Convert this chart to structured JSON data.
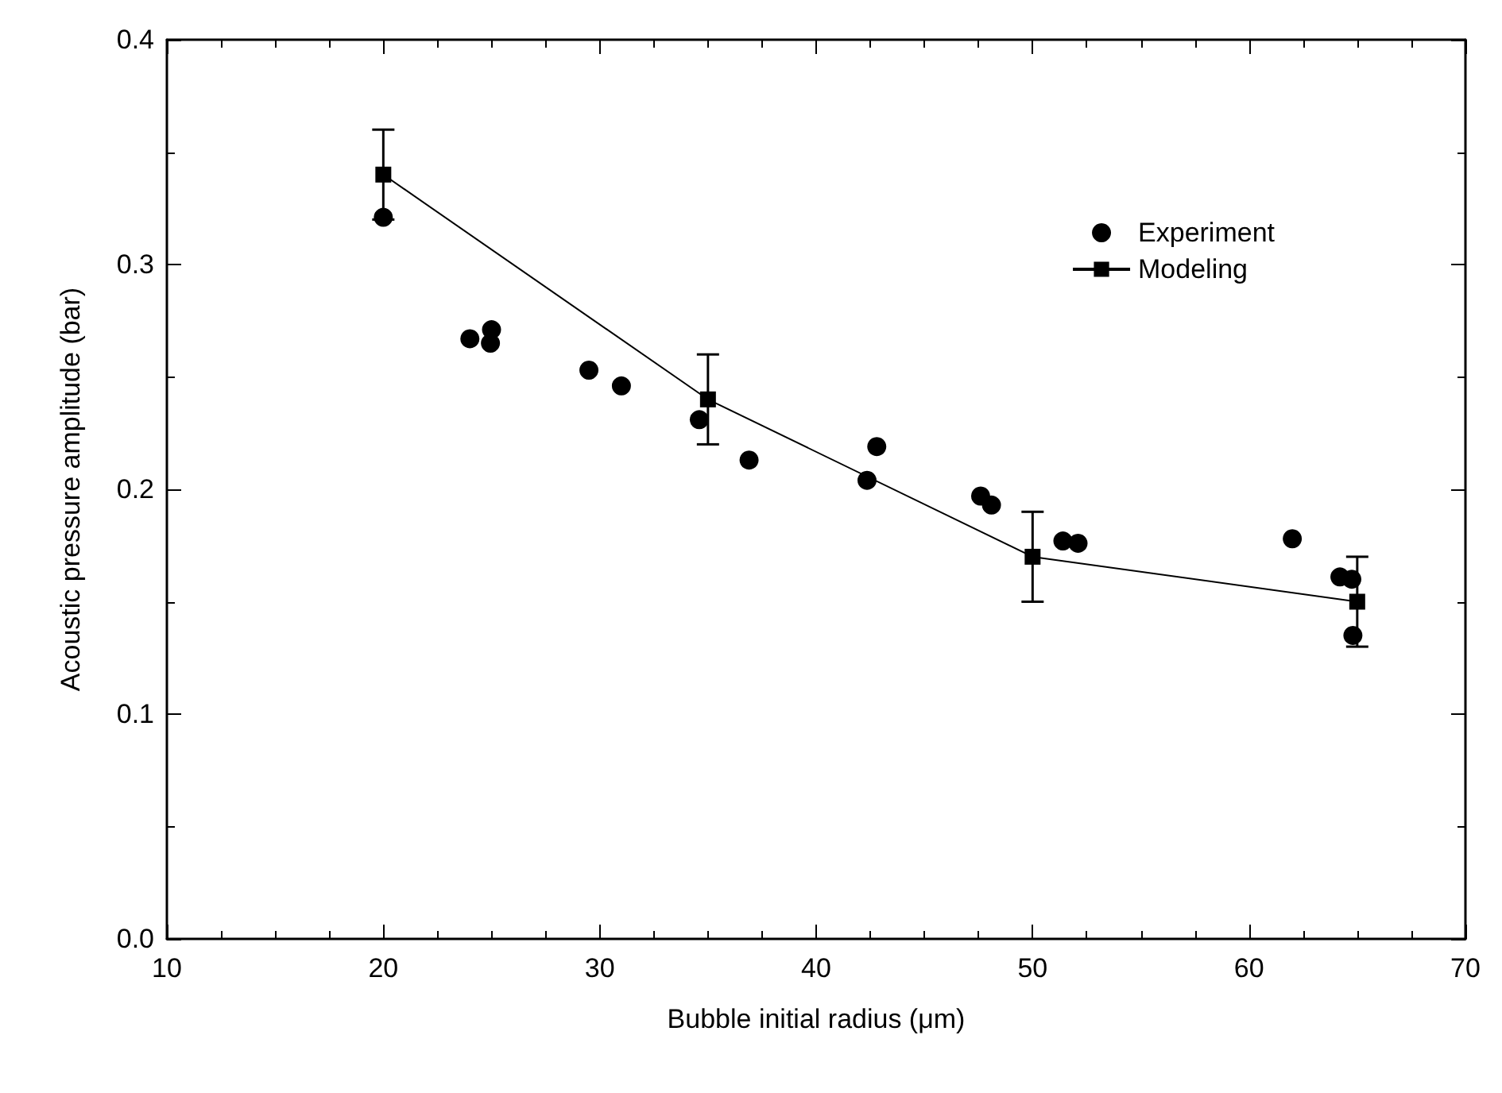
{
  "chart_data": {
    "type": "scatter",
    "xlabel": "Bubble initial radius (μm)",
    "ylabel": "Acoustic pressure amplitude (bar)",
    "xlim": [
      10,
      70
    ],
    "xticks": [
      10,
      20,
      30,
      40,
      50,
      60,
      70
    ],
    "ylim": [
      0,
      0.4
    ],
    "yticks": [
      {
        "value": 0,
        "label": "0.0"
      },
      0.1,
      0.2,
      0.3,
      0.4
    ],
    "legend": "top right",
    "grid": false,
    "series": [
      {
        "name": "Experiment",
        "marker": "circle",
        "color": "#000000",
        "x": [
          20,
          24.0,
          25.0,
          24.95,
          29.5,
          31.0,
          34.6,
          36.9,
          42.8,
          42.35,
          47.6,
          48.1,
          51.4,
          52.1,
          62.0,
          64.2,
          64.75,
          64.8
        ],
        "values": [
          0.321,
          0.267,
          0.271,
          0.265,
          0.253,
          0.246,
          0.231,
          0.213,
          0.219,
          0.204,
          0.197,
          0.193,
          0.177,
          0.176,
          0.178,
          0.161,
          0.16,
          0.135
        ]
      },
      {
        "name": "Modeling",
        "type": "line",
        "marker": "square",
        "line_style": "solid",
        "color": "#000000",
        "x": [
          20,
          35,
          50,
          65
        ],
        "values": [
          0.34,
          0.24,
          0.17,
          0.15
        ],
        "errors": [
          0.02,
          0.02,
          0.02,
          0.02
        ]
      }
    ]
  }
}
